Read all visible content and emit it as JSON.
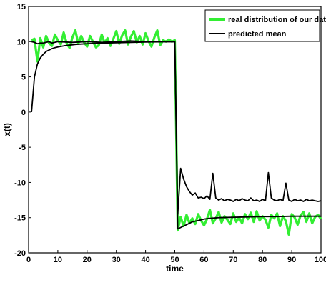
{
  "chart_data": {
    "type": "line",
    "title": "",
    "xlabel": "time",
    "ylabel": "x(t)",
    "xlim": [
      0,
      100
    ],
    "ylim": [
      -20,
      15
    ],
    "xticks": [
      "0",
      "10",
      "20",
      "30",
      "40",
      "50",
      "60",
      "70",
      "80",
      "90",
      "100"
    ],
    "yticks": [
      "15",
      "10",
      "5",
      "0",
      "-5",
      "-10",
      "-15",
      "-20"
    ],
    "grid": false,
    "legend_position": "top-right",
    "series": [
      {
        "name": "real distribution of our data",
        "color": "#33ee33",
        "values": [
          [
            1,
            10.2
          ],
          [
            2,
            10.4
          ],
          [
            3,
            7.2
          ],
          [
            4,
            10.5
          ],
          [
            5,
            9.2
          ],
          [
            6,
            10.8
          ],
          [
            7,
            9.8
          ],
          [
            8,
            9.4
          ],
          [
            9,
            11.0
          ],
          [
            10,
            10.2
          ],
          [
            11,
            9.6
          ],
          [
            12,
            11.3
          ],
          [
            13,
            9.8
          ],
          [
            14,
            9.1
          ],
          [
            15,
            10.6
          ],
          [
            16,
            11.6
          ],
          [
            17,
            9.7
          ],
          [
            18,
            10.8
          ],
          [
            19,
            9.9
          ],
          [
            20,
            9.3
          ],
          [
            21,
            10.8
          ],
          [
            22,
            10.0
          ],
          [
            23,
            9.2
          ],
          [
            24,
            9.5
          ],
          [
            25,
            11.0
          ],
          [
            26,
            9.8
          ],
          [
            27,
            10.5
          ],
          [
            28,
            9.4
          ],
          [
            29,
            10.4
          ],
          [
            30,
            11.5
          ],
          [
            31,
            9.7
          ],
          [
            32,
            10.9
          ],
          [
            33,
            11.6
          ],
          [
            34,
            9.6
          ],
          [
            35,
            10.7
          ],
          [
            36,
            11.5
          ],
          [
            37,
            9.9
          ],
          [
            38,
            10.8
          ],
          [
            39,
            9.6
          ],
          [
            40,
            11.2
          ],
          [
            41,
            10.1
          ],
          [
            42,
            9.3
          ],
          [
            43,
            10.6
          ],
          [
            44,
            11.6
          ],
          [
            45,
            9.5
          ],
          [
            46,
            10.2
          ],
          [
            47,
            10.0
          ],
          [
            48,
            10.3
          ],
          [
            49,
            10.0
          ],
          [
            50,
            10.2
          ],
          [
            51,
            -16.8
          ],
          [
            52,
            -14.9
          ],
          [
            53,
            -16.2
          ],
          [
            54,
            -14.6
          ],
          [
            55,
            -15.8
          ],
          [
            56,
            -15.1
          ],
          [
            57,
            -15.9
          ],
          [
            58,
            -14.5
          ],
          [
            59,
            -15.4
          ],
          [
            60,
            -16.1
          ],
          [
            61,
            -15.2
          ],
          [
            62,
            -13.9
          ],
          [
            63,
            -15.8
          ],
          [
            64,
            -15.1
          ],
          [
            65,
            -14.2
          ],
          [
            66,
            -15.7
          ],
          [
            67,
            -14.8
          ],
          [
            68,
            -15.3
          ],
          [
            69,
            -15.9
          ],
          [
            70,
            -14.4
          ],
          [
            71,
            -15.6
          ],
          [
            72,
            -15.0
          ],
          [
            73,
            -15.8
          ],
          [
            74,
            -14.5
          ],
          [
            75,
            -15.2
          ],
          [
            76,
            -14.3
          ],
          [
            77,
            -15.6
          ],
          [
            78,
            -14.1
          ],
          [
            79,
            -15.4
          ],
          [
            80,
            -14.8
          ],
          [
            81,
            -15.3
          ],
          [
            82,
            -16.4
          ],
          [
            83,
            -14.6
          ],
          [
            84,
            -15.1
          ],
          [
            85,
            -14.4
          ],
          [
            86,
            -16.2
          ],
          [
            87,
            -14.8
          ],
          [
            88,
            -15.5
          ],
          [
            89,
            -17.4
          ],
          [
            90,
            -14.5
          ],
          [
            91,
            -15.0
          ],
          [
            92,
            -16.0
          ],
          [
            93,
            -14.7
          ],
          [
            94,
            -14.2
          ],
          [
            95,
            -15.6
          ],
          [
            96,
            -14.4
          ],
          [
            97,
            -15.8
          ],
          [
            98,
            -14.9
          ],
          [
            99,
            -14.6
          ],
          [
            100,
            -15.2
          ]
        ]
      },
      {
        "name": "predicted mean",
        "color": "#000000",
        "values": [
          [
            1,
            0.0
          ],
          [
            2,
            5.0
          ],
          [
            3,
            6.8
          ],
          [
            4,
            7.7
          ],
          [
            5,
            8.2
          ],
          [
            6,
            8.6
          ],
          [
            7,
            8.8
          ],
          [
            8,
            9.0
          ],
          [
            9,
            9.15
          ],
          [
            10,
            9.25
          ],
          [
            12,
            9.4
          ],
          [
            14,
            9.5
          ],
          [
            16,
            9.6
          ],
          [
            18,
            9.65
          ],
          [
            20,
            9.7
          ],
          [
            25,
            9.8
          ],
          [
            30,
            9.85
          ],
          [
            35,
            9.9
          ],
          [
            40,
            9.95
          ],
          [
            45,
            9.97
          ],
          [
            50,
            10.0
          ],
          [
            51,
            -16.6
          ],
          [
            52,
            -16.4
          ],
          [
            53,
            -16.2
          ],
          [
            54,
            -16.0
          ],
          [
            55,
            -15.8
          ],
          [
            56,
            -15.6
          ],
          [
            57,
            -15.5
          ],
          [
            58,
            -15.4
          ],
          [
            59,
            -15.3
          ],
          [
            60,
            -15.2
          ],
          [
            62,
            -15.1
          ],
          [
            65,
            -15.0
          ],
          [
            70,
            -14.95
          ],
          [
            75,
            -14.9
          ],
          [
            80,
            -14.85
          ],
          [
            85,
            -14.85
          ],
          [
            90,
            -14.8
          ],
          [
            95,
            -14.8
          ],
          [
            100,
            -14.8
          ]
        ]
      },
      {
        "name": "",
        "color": "#000000",
        "values": [
          [
            1,
            10.0
          ],
          [
            2,
            9.9
          ],
          [
            3,
            9.7
          ],
          [
            4,
            9.8
          ],
          [
            5,
            9.8
          ],
          [
            6,
            9.9
          ],
          [
            7,
            10.0
          ],
          [
            8,
            9.8
          ],
          [
            9,
            9.9
          ],
          [
            10,
            10.0
          ],
          [
            15,
            9.9
          ],
          [
            20,
            10.0
          ],
          [
            25,
            9.9
          ],
          [
            30,
            10.0
          ],
          [
            35,
            10.1
          ],
          [
            40,
            10.0
          ],
          [
            45,
            10.0
          ],
          [
            50,
            10.0
          ],
          [
            51,
            -14.5
          ],
          [
            52,
            -8.0
          ],
          [
            53,
            -9.5
          ],
          [
            54,
            -10.6
          ],
          [
            55,
            -11.3
          ],
          [
            56,
            -11.8
          ],
          [
            57,
            -11.5
          ],
          [
            58,
            -12.2
          ],
          [
            59,
            -12.1
          ],
          [
            60,
            -12.3
          ],
          [
            61,
            -11.9
          ],
          [
            62,
            -12.4
          ],
          [
            63,
            -8.7
          ],
          [
            64,
            -12.2
          ],
          [
            65,
            -12.5
          ],
          [
            66,
            -12.3
          ],
          [
            67,
            -12.6
          ],
          [
            68,
            -12.4
          ],
          [
            69,
            -12.5
          ],
          [
            70,
            -12.7
          ],
          [
            71,
            -12.4
          ],
          [
            72,
            -12.6
          ],
          [
            73,
            -12.3
          ],
          [
            74,
            -12.5
          ],
          [
            75,
            -12.6
          ],
          [
            76,
            -12.2
          ],
          [
            77,
            -12.6
          ],
          [
            78,
            -12.5
          ],
          [
            79,
            -12.7
          ],
          [
            80,
            -12.4
          ],
          [
            81,
            -12.6
          ],
          [
            82,
            -8.6
          ],
          [
            83,
            -12.2
          ],
          [
            84,
            -12.5
          ],
          [
            85,
            -12.6
          ],
          [
            86,
            -12.4
          ],
          [
            87,
            -12.6
          ],
          [
            88,
            -10.1
          ],
          [
            89,
            -12.5
          ],
          [
            90,
            -12.7
          ],
          [
            91,
            -12.4
          ],
          [
            92,
            -12.6
          ],
          [
            93,
            -12.5
          ],
          [
            94,
            -12.7
          ],
          [
            95,
            -12.4
          ],
          [
            96,
            -12.6
          ],
          [
            97,
            -12.5
          ],
          [
            98,
            -12.6
          ],
          [
            99,
            -12.7
          ],
          [
            100,
            -12.6
          ]
        ]
      }
    ]
  }
}
